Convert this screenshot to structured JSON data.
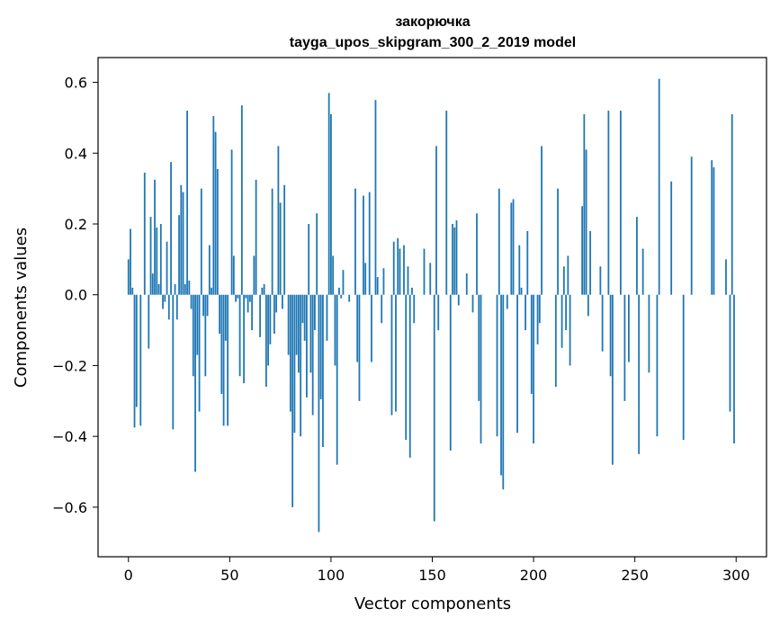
{
  "chart_data": {
    "type": "bar",
    "title": "закорючка",
    "subtitle": "tayga_upos_skipgram_300_2_2019 model",
    "xlabel": "Vector components",
    "ylabel": "Components values",
    "xlim": [
      -15,
      315
    ],
    "ylim": [
      -0.74,
      0.67
    ],
    "xticks": [
      0,
      50,
      100,
      150,
      200,
      250,
      300
    ],
    "yticks": [
      -0.6,
      -0.4,
      -0.2,
      0.0,
      0.2,
      0.4,
      0.6
    ],
    "ytick_labels": [
      "−0.6",
      "−0.4",
      "−0.2",
      "0.0",
      "0.2",
      "0.4",
      "0.6"
    ],
    "grid": false,
    "bar_color": "#1f77b4",
    "x": [
      0,
      1,
      2,
      3,
      4,
      5,
      6,
      7,
      8,
      9,
      10,
      11,
      12,
      13,
      14,
      15,
      16,
      17,
      18,
      19,
      20,
      21,
      22,
      23,
      24,
      25,
      26,
      27,
      28,
      29,
      30,
      31,
      32,
      33,
      34,
      35,
      36,
      37,
      38,
      39,
      40,
      41,
      42,
      43,
      44,
      45,
      46,
      47,
      48,
      49,
      50,
      51,
      52,
      53,
      54,
      55,
      56,
      57,
      58,
      59,
      60,
      61,
      62,
      63,
      64,
      65,
      66,
      67,
      68,
      69,
      70,
      71,
      72,
      73,
      74,
      75,
      76,
      77,
      78,
      79,
      80,
      81,
      82,
      83,
      84,
      85,
      86,
      87,
      88,
      89,
      90,
      91,
      92,
      93,
      94,
      95,
      96,
      97,
      98,
      99,
      100,
      101,
      102,
      103,
      104,
      105,
      106,
      107,
      108,
      109,
      110,
      111,
      112,
      113,
      114,
      115,
      116,
      117,
      118,
      119,
      120,
      121,
      122,
      123,
      124,
      125,
      126,
      127,
      128,
      129,
      130,
      131,
      132,
      133,
      134,
      135,
      136,
      137,
      138,
      139,
      140,
      141,
      142,
      143,
      144,
      145,
      146,
      147,
      148,
      149,
      150,
      151,
      152,
      153,
      154,
      155,
      156,
      157,
      158,
      159,
      160,
      161,
      162,
      163,
      164,
      165,
      166,
      167,
      168,
      169,
      170,
      171,
      172,
      173,
      174,
      175,
      176,
      177,
      178,
      179,
      180,
      181,
      182,
      183,
      184,
      185,
      186,
      187,
      188,
      189,
      190,
      191,
      192,
      193,
      194,
      195,
      196,
      197,
      198,
      199,
      200,
      201,
      202,
      203,
      204,
      205,
      206,
      207,
      208,
      209,
      210,
      211,
      212,
      213,
      214,
      215,
      216,
      217,
      218,
      219,
      220,
      221,
      222,
      223,
      224,
      225,
      226,
      227,
      228,
      229,
      230,
      231,
      232,
      233,
      234,
      235,
      236,
      237,
      238,
      239,
      240,
      241,
      242,
      243,
      244,
      245,
      246,
      247,
      248,
      249,
      250,
      251,
      252,
      253,
      254,
      255,
      256,
      257,
      258,
      259,
      260,
      261,
      262,
      263,
      264,
      265,
      266,
      267,
      268,
      269,
      270,
      271,
      272,
      273,
      274,
      275,
      276,
      277,
      278,
      279,
      280,
      281,
      282,
      283,
      284,
      285,
      286,
      287,
      288,
      289,
      290,
      291,
      292,
      293,
      294,
      295,
      296,
      297,
      298,
      299
    ],
    "values": [
      0.1,
      0.186,
      0.02,
      -0.375,
      -0.317,
      0.0,
      -0.37,
      0.0,
      0.345,
      0.0,
      -0.152,
      0.22,
      0.06,
      0.325,
      0.19,
      0.03,
      0.2,
      -0.04,
      -0.02,
      0.15,
      -0.07,
      0.375,
      -0.38,
      0.03,
      -0.07,
      0.225,
      0.31,
      0.29,
      0.03,
      0.52,
      0.04,
      -0.04,
      -0.23,
      -0.5,
      -0.17,
      -0.33,
      0.3,
      -0.06,
      -0.23,
      -0.06,
      0.14,
      0.02,
      0.505,
      0.46,
      0.355,
      -0.11,
      -0.28,
      -0.37,
      -0.13,
      -0.37,
      0.0,
      0.41,
      0.11,
      -0.02,
      -0.01,
      -0.23,
      0.535,
      -0.25,
      -0.01,
      -0.05,
      -0.02,
      -0.1,
      0.11,
      0.325,
      0.0,
      -0.12,
      0.02,
      0.03,
      -0.26,
      -0.2,
      -0.14,
      0.3,
      -0.11,
      -0.05,
      0.42,
      0.26,
      -0.04,
      0.31,
      0.0,
      -0.17,
      -0.33,
      -0.6,
      -0.39,
      -0.17,
      -0.22,
      -0.4,
      -0.08,
      -0.13,
      -0.29,
      0.2,
      -0.22,
      -0.34,
      -0.1,
      0.23,
      -0.67,
      -0.295,
      -0.43,
      -0.0,
      -0.13,
      0.57,
      0.51,
      0.11,
      -0.2,
      -0.48,
      0.02,
      -0.01,
      0.07,
      0.0,
      0.0,
      -0.02,
      0.0,
      0.0,
      0.3,
      -0.19,
      -0.3,
      0.0,
      0.28,
      0.09,
      0.0,
      0.29,
      -0.19,
      0.0,
      0.55,
      0.05,
      0.0,
      -0.08,
      0.075,
      0.0,
      0.0,
      0.0,
      -0.34,
      0.15,
      -0.33,
      0.16,
      0.13,
      0.0,
      0.14,
      -0.41,
      0.08,
      -0.46,
      0.02,
      -0.08,
      0.0,
      0.0,
      0.0,
      0.0,
      0.13,
      0.0,
      0.0,
      0.09,
      0.0,
      -0.64,
      0.42,
      -0.1,
      0.0,
      0.0,
      0.0,
      0.52,
      0.0,
      -0.44,
      0.2,
      0.19,
      0.21,
      -0.03,
      0.0,
      0.0,
      0.0,
      0.06,
      0.0,
      0.0,
      -0.05,
      0.0,
      0.23,
      -0.3,
      -0.42,
      0.0,
      0.0,
      0.0,
      0.0,
      0.0,
      0.0,
      0.0,
      -0.4,
      0.3,
      -0.51,
      -0.55,
      0.0,
      -0.04,
      0.0,
      0.26,
      0.27,
      0.0,
      -0.39,
      0.14,
      0.02,
      0.0,
      -0.1,
      0.18,
      0.0,
      -0.28,
      -0.42,
      0.0,
      -0.14,
      -0.08,
      0.42,
      0.0,
      0.0,
      0.0,
      0.0,
      0.0,
      0.0,
      -0.26,
      0.3,
      0.0,
      -0.15,
      0.08,
      -0.1,
      0.11,
      -0.2,
      0.0,
      0.0,
      0.0,
      0.0,
      0.0,
      0.25,
      0.51,
      0.41,
      -0.06,
      0.18,
      0.0,
      0.0,
      0.0,
      0.0,
      0.08,
      -0.16,
      0.0,
      0.0,
      0.52,
      -0.23,
      -0.48,
      0.0,
      0.0,
      0.0,
      0.52,
      0.0,
      -0.3,
      0.0,
      -0.19,
      0.0,
      0.0,
      0.0,
      0.22,
      -0.45,
      0.0,
      0.13,
      0.0,
      0.0,
      -0.22,
      0.0,
      0.0,
      0.0,
      -0.4,
      0.61,
      0.0,
      0.0,
      0.0,
      0.0,
      0.0,
      0.32,
      0.0,
      0.0,
      0.0,
      0.0,
      0.0,
      -0.41,
      0.0,
      0.0,
      0.0,
      0.39,
      0.0,
      0.0,
      0.0,
      0.0,
      0.0,
      0.0,
      0.0,
      0.0,
      0.0,
      0.38,
      0.36,
      0.0,
      0.0,
      0.0,
      0.0,
      0.0,
      0.1,
      0.0,
      -0.33,
      0.51,
      -0.42
    ]
  }
}
